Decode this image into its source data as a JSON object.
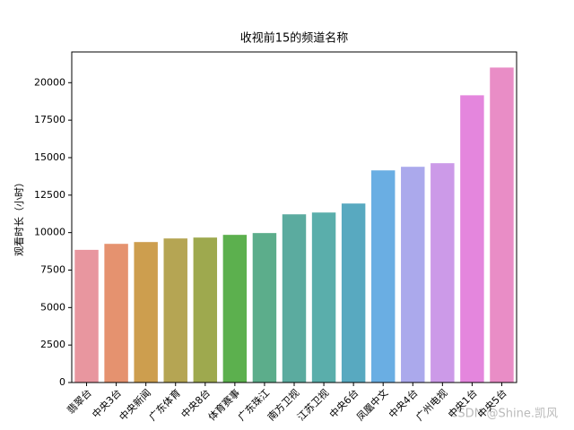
{
  "chart_data": {
    "type": "bar",
    "title": "收视前15的频道名称",
    "y_label": "观看时长（小时）",
    "categories": [
      "翡翠台",
      "中央3台",
      "中央新闻",
      "广东体育",
      "中央8台",
      "体育赛事",
      "广东珠江",
      "南方卫视",
      "江苏卫视",
      "中央6台",
      "凤凰中文",
      "中央4台",
      "广州电视",
      "中央1台",
      "中央5台"
    ],
    "values": [
      8850,
      9250,
      9370,
      9610,
      9670,
      9850,
      9970,
      11220,
      11340,
      11940,
      14150,
      14390,
      14630,
      19160,
      21010
    ],
    "colors": [
      "#e8969f",
      "#e5926f",
      "#cd9e4e",
      "#b5a553",
      "#9ea94e",
      "#5cb04e",
      "#5cad8b",
      "#5bab9f",
      "#5aaeab",
      "#58a9c0",
      "#6aaee3",
      "#aba9ec",
      "#cc9ae8",
      "#e486dd",
      "#e98dc6"
    ],
    "ylim": [
      0,
      22050
    ],
    "yticks": [
      0,
      2500,
      5000,
      7500,
      10000,
      12500,
      15000,
      17500,
      20000
    ]
  },
  "watermark": "CSDN @Shine.凯风"
}
